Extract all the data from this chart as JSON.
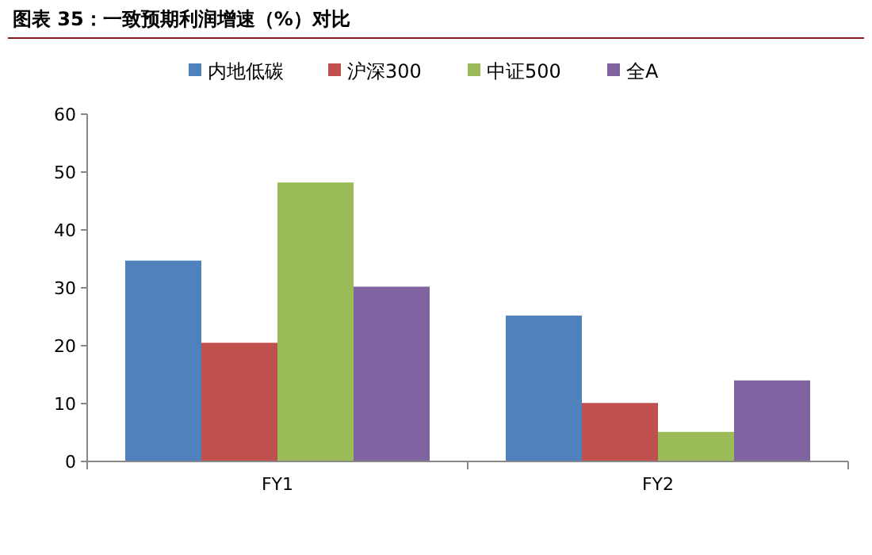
{
  "chart_data": {
    "type": "bar",
    "title": "图表 35：一致预期利润增速（%）对比",
    "categories": [
      "FY1",
      "FY2"
    ],
    "series": [
      {
        "name": "内地低碳",
        "color": "#4f81bd",
        "values": [
          34.7,
          25.2
        ]
      },
      {
        "name": "沪深300",
        "color": "#c0504d",
        "values": [
          20.5,
          10.1
        ]
      },
      {
        "name": "中证500",
        "color": "#9bbb59",
        "values": [
          48.2,
          5.1
        ]
      },
      {
        "name": "全A",
        "color": "#8064a2",
        "values": [
          30.2,
          14.0
        ]
      }
    ],
    "ylim": [
      0,
      60
    ],
    "yticks": [
      0,
      10,
      20,
      30,
      40,
      50,
      60
    ],
    "grid": false,
    "legend": "top"
  }
}
